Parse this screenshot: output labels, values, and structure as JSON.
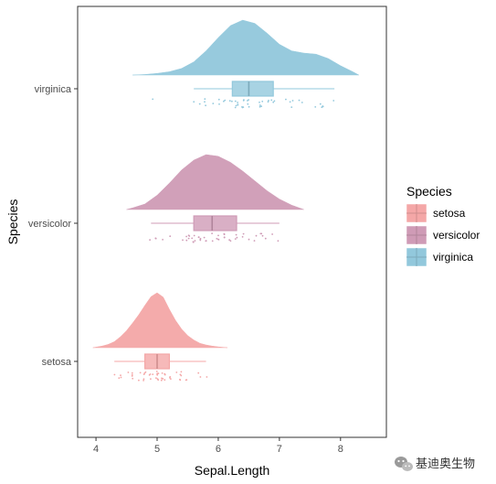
{
  "chart_data": {
    "type": "raincloud",
    "title": "",
    "xlabel": "Sepal.Length",
    "ylabel": "Species",
    "xlim": [
      3.7,
      8.75
    ],
    "xticks": [
      4,
      5,
      6,
      7,
      8
    ],
    "grid": false,
    "legend": {
      "title": "Species",
      "placement": "right"
    },
    "categories": [
      "setosa",
      "versicolor",
      "virginica"
    ],
    "series": [
      {
        "name": "setosa",
        "color": "#f4a7a7",
        "box": {
          "min": 4.3,
          "q1": 4.8,
          "median": 5.0,
          "q3": 5.2,
          "max": 5.8
        },
        "density": [
          [
            3.95,
            0.0
          ],
          [
            4.1,
            0.03
          ],
          [
            4.2,
            0.06
          ],
          [
            4.3,
            0.11
          ],
          [
            4.4,
            0.2
          ],
          [
            4.5,
            0.31
          ],
          [
            4.6,
            0.45
          ],
          [
            4.7,
            0.6
          ],
          [
            4.8,
            0.77
          ],
          [
            4.9,
            0.93
          ],
          [
            5.0,
            1.0
          ],
          [
            5.1,
            0.92
          ],
          [
            5.2,
            0.7
          ],
          [
            5.3,
            0.5
          ],
          [
            5.4,
            0.34
          ],
          [
            5.5,
            0.22
          ],
          [
            5.6,
            0.14
          ],
          [
            5.7,
            0.08
          ],
          [
            5.8,
            0.05
          ],
          [
            5.9,
            0.03
          ],
          [
            6.0,
            0.015
          ],
          [
            6.1,
            0.005
          ],
          [
            6.15,
            0.0
          ]
        ],
        "points": [
          5.1,
          4.9,
          4.7,
          4.6,
          5.0,
          5.4,
          4.6,
          5.0,
          4.4,
          4.9,
          5.4,
          4.8,
          4.8,
          4.3,
          5.8,
          5.7,
          5.4,
          5.1,
          5.7,
          5.1,
          5.4,
          5.1,
          4.6,
          5.1,
          4.8,
          5.0,
          5.0,
          5.2,
          5.2,
          4.7,
          4.8,
          5.4,
          5.2,
          5.5,
          4.9,
          5.0,
          5.5,
          4.9,
          4.4,
          5.1,
          5.0,
          4.5,
          4.4,
          5.0,
          5.1,
          4.8,
          5.1,
          4.6,
          5.3,
          5.0
        ]
      },
      {
        "name": "versicolor",
        "color": "#cf9bb6",
        "box": {
          "min": 4.9,
          "q1": 5.6,
          "median": 5.9,
          "q3": 6.3,
          "max": 7.0
        },
        "density": [
          [
            4.5,
            0.0
          ],
          [
            4.6,
            0.03
          ],
          [
            4.8,
            0.1
          ],
          [
            5.0,
            0.26
          ],
          [
            5.2,
            0.48
          ],
          [
            5.4,
            0.72
          ],
          [
            5.6,
            0.9
          ],
          [
            5.8,
            1.0
          ],
          [
            6.0,
            0.97
          ],
          [
            6.2,
            0.86
          ],
          [
            6.4,
            0.7
          ],
          [
            6.6,
            0.52
          ],
          [
            6.8,
            0.34
          ],
          [
            7.0,
            0.19
          ],
          [
            7.2,
            0.08
          ],
          [
            7.4,
            0.0
          ]
        ],
        "points": [
          7.0,
          6.4,
          6.9,
          5.5,
          6.5,
          5.7,
          6.3,
          4.9,
          6.6,
          5.2,
          5.0,
          5.9,
          6.0,
          6.1,
          5.6,
          6.7,
          5.6,
          5.8,
          6.2,
          5.6,
          5.9,
          6.1,
          6.3,
          6.1,
          6.4,
          6.6,
          6.8,
          6.7,
          6.0,
          5.7,
          5.5,
          5.5,
          5.8,
          6.0,
          5.4,
          6.0,
          6.7,
          6.3,
          5.6,
          5.5,
          5.5,
          6.1,
          5.8,
          5.0,
          5.6,
          5.7,
          5.7,
          6.2,
          5.1,
          5.7
        ]
      },
      {
        "name": "virginica",
        "color": "#92c8dc",
        "box": {
          "min": 5.6,
          "q1": 6.23,
          "median": 6.5,
          "q3": 6.9,
          "max": 7.9
        },
        "density": [
          [
            4.6,
            0.0
          ],
          [
            4.8,
            0.01
          ],
          [
            5.0,
            0.03
          ],
          [
            5.2,
            0.06
          ],
          [
            5.4,
            0.12
          ],
          [
            5.6,
            0.24
          ],
          [
            5.8,
            0.44
          ],
          [
            6.0,
            0.68
          ],
          [
            6.2,
            0.9
          ],
          [
            6.4,
            1.0
          ],
          [
            6.6,
            0.94
          ],
          [
            6.8,
            0.76
          ],
          [
            7.0,
            0.56
          ],
          [
            7.2,
            0.44
          ],
          [
            7.4,
            0.4
          ],
          [
            7.6,
            0.38
          ],
          [
            7.8,
            0.3
          ],
          [
            8.0,
            0.17
          ],
          [
            8.2,
            0.06
          ],
          [
            8.3,
            0.0
          ]
        ],
        "points": [
          6.3,
          5.8,
          7.1,
          6.3,
          6.5,
          7.6,
          4.9,
          7.3,
          6.7,
          7.2,
          6.5,
          6.4,
          6.8,
          5.7,
          5.8,
          6.4,
          6.5,
          7.7,
          7.7,
          6.0,
          6.9,
          5.6,
          7.7,
          6.3,
          6.7,
          7.2,
          6.2,
          6.1,
          6.4,
          7.2,
          7.4,
          7.9,
          6.4,
          6.3,
          6.1,
          7.7,
          6.3,
          6.4,
          6.0,
          6.9,
          6.7,
          6.9,
          5.8,
          6.8,
          6.7,
          6.7,
          6.3,
          6.5,
          6.2,
          5.9
        ]
      }
    ]
  },
  "watermark": {
    "text": "基迪奥生物",
    "icon": "wechat-icon"
  }
}
